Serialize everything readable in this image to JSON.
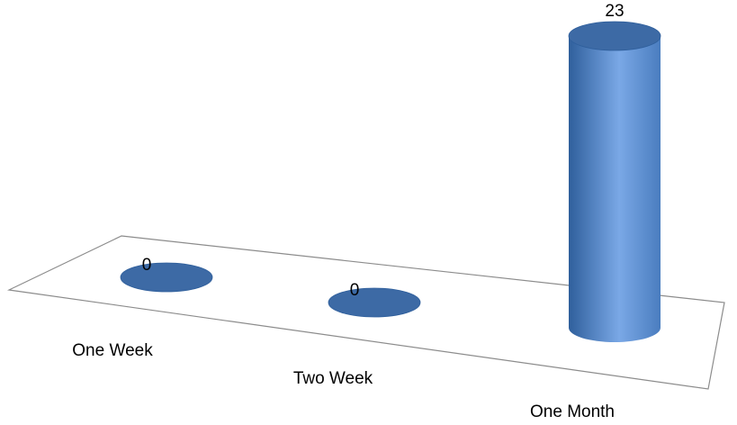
{
  "chart_data": {
    "type": "bar",
    "style": "3d-cylinder",
    "categories": [
      "One Week",
      "Two Week",
      "One Month"
    ],
    "values": [
      0,
      0,
      23
    ],
    "data_labels": [
      "0",
      "0",
      "23"
    ],
    "title": "",
    "xlabel": "",
    "ylabel": "",
    "ylim": [
      0,
      23
    ],
    "grid": false,
    "legend": "none",
    "colors": {
      "bar": "#4a7dbf",
      "bar_light": "#7aa8e6",
      "bar_dark": "#2f5f9c",
      "top": "#3d6aa5",
      "floor_stroke": "#8c8c8c"
    }
  }
}
